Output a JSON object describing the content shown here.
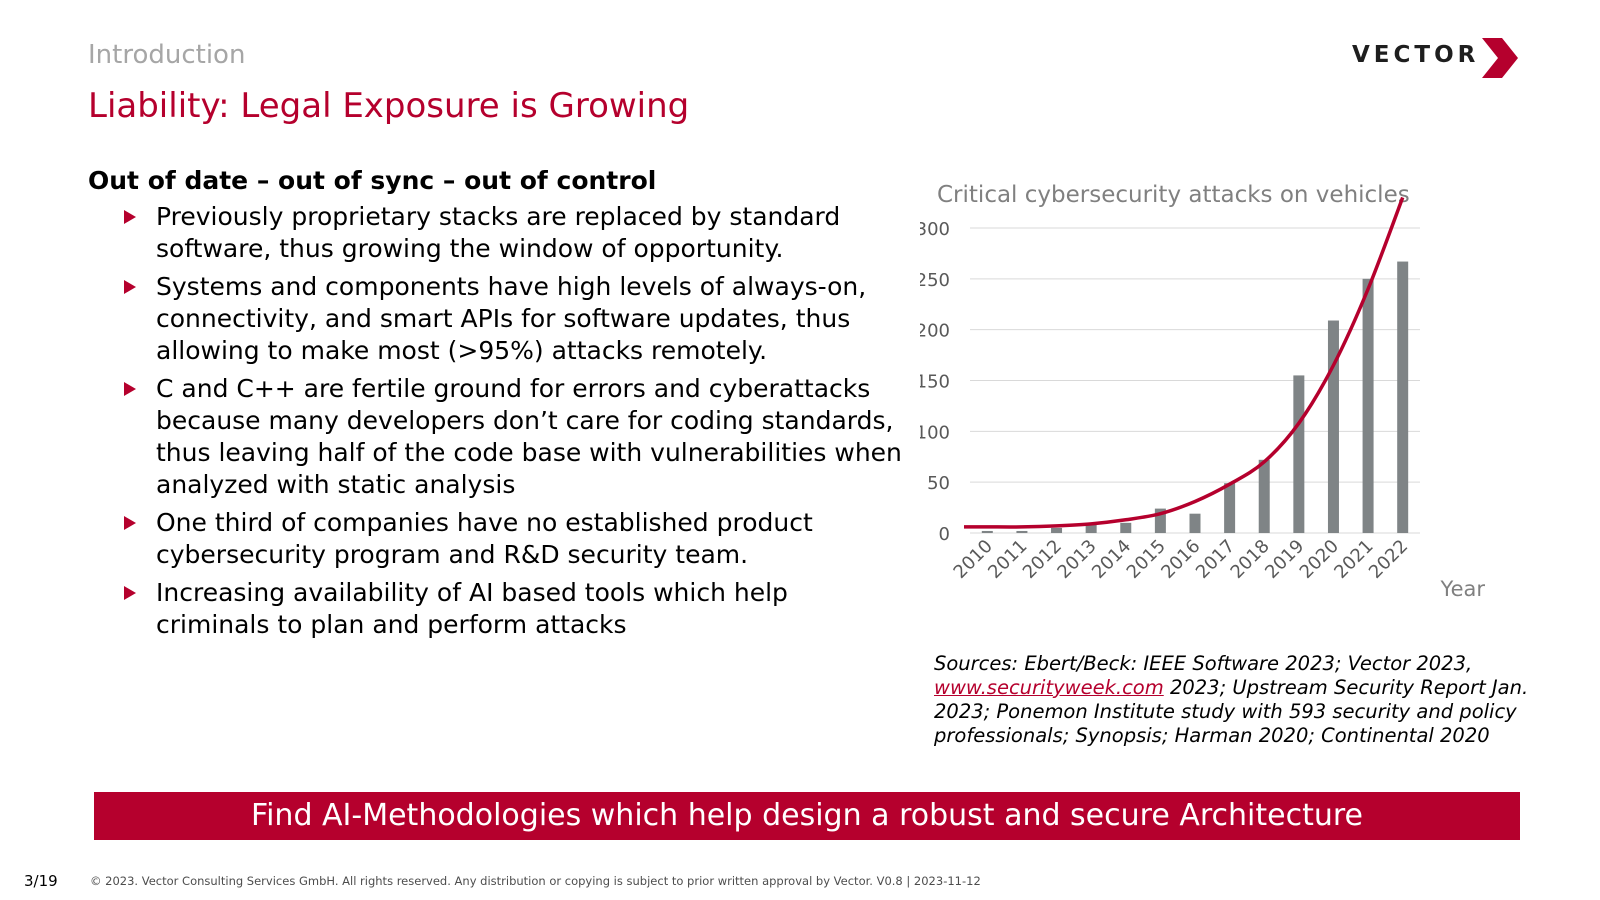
{
  "header": {
    "section": "Introduction",
    "title": "Liability: Legal Exposure is Growing",
    "logo_text": "VECTOR",
    "logo_icon": "vector-chevron-icon"
  },
  "left": {
    "heading": "Out of date – out of sync – out of control",
    "bullets": [
      "Previously proprietary stacks are replaced by standard software, thus growing the window of opportunity.",
      "Systems and components have high levels of always-on, connectivity, and smart APIs for software updates, thus allowing to make most (>95%) attacks remotely.",
      "C and C++ are fertile ground for errors and cyberattacks because many developers don’t care for coding standards, thus leaving half of the code base with vulnerabilities when analyzed with static analysis",
      "One third of companies have no established product cybersecurity program and R&D security team.",
      "Increasing availability of AI based tools which help criminals to plan and perform attacks"
    ],
    "bullet_icon": "triangle-bullet-icon"
  },
  "chart_data": {
    "type": "bar",
    "title": "Critical cybersecurity attacks on vehicles",
    "xlabel": "Year",
    "ylabel": "",
    "categories": [
      "2010",
      "2011",
      "2012",
      "2013",
      "2014",
      "2015",
      "2016",
      "2017",
      "2018",
      "2019",
      "2020",
      "2021",
      "2022"
    ],
    "series": [
      {
        "values": [
          2,
          2,
          5,
          8,
          10,
          24,
          19,
          49,
          72,
          155,
          209,
          250,
          267
        ]
      }
    ],
    "trendline": {
      "type": "exponential",
      "values": [
        6,
        6,
        7,
        9,
        13,
        19,
        31,
        48,
        70,
        108,
        165,
        240,
        330
      ]
    },
    "ylim": [
      0,
      300
    ],
    "yticks": [
      0,
      50,
      100,
      150,
      200,
      250,
      300
    ],
    "grid": true,
    "legend": "none",
    "colors": {
      "bar": "#7f8486",
      "trend": "#b5002d",
      "grid": "#d9d9d9",
      "axis_text": "#595959"
    }
  },
  "sources": {
    "prefix": "Sources: Ebert/Beck: IEEE Software 2023; Vector 2023,",
    "link": "www.securityweek.com",
    "suffix": "2023; Upstream Security Report Jan. 2023; Ponemon Institute study with 593 security and policy professionals; Synopsis; Harman 2020; Continental 2020"
  },
  "banner": "Find AI-Methodologies which help design a robust and secure Architecture",
  "footer": {
    "page": "3/19",
    "copyright": "© 2023. Vector Consulting Services GmbH. All rights reserved. Any distribution or copying is subject to prior written approval by Vector. V0.8 | 2023-11-12"
  },
  "colors": {
    "accent": "#b5002d",
    "muted": "#a6a6a6"
  }
}
